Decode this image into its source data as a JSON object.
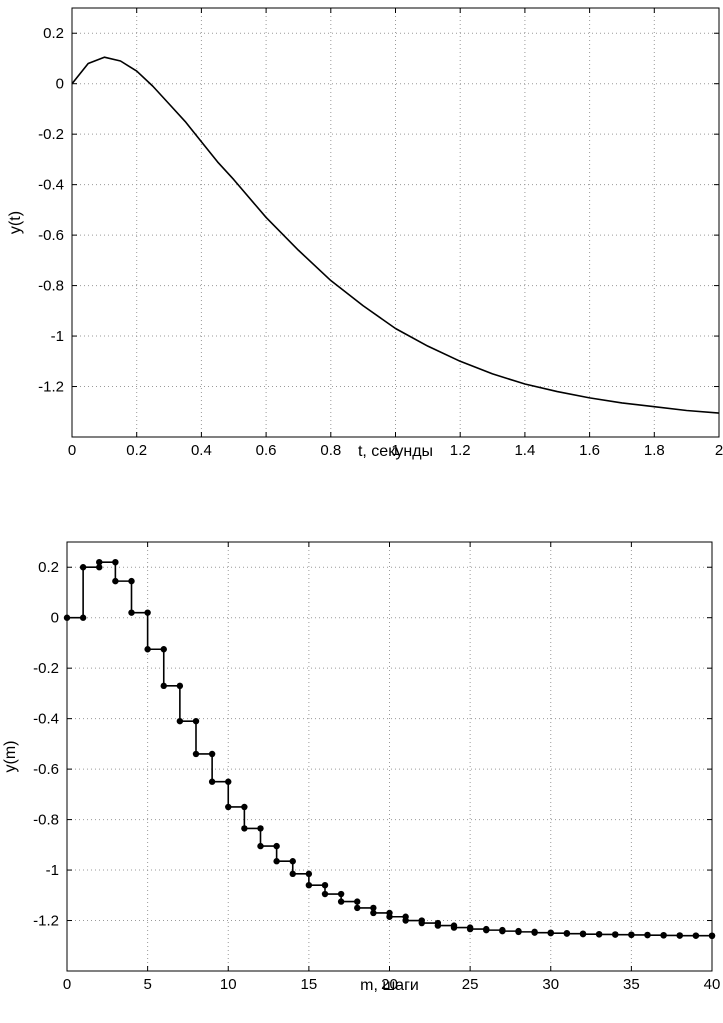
{
  "chart_data": [
    {
      "type": "line",
      "xlabel": "t, секунды",
      "ylabel": "y(t)",
      "xlim": [
        0,
        2
      ],
      "ylim": [
        -1.4,
        0.3
      ],
      "xticks": [
        0,
        0.2,
        0.4,
        0.6,
        0.8,
        1,
        1.2,
        1.4,
        1.6,
        1.8,
        2
      ],
      "xtick_labels": [
        "0",
        "0.2",
        "0.4",
        "0.6",
        "0.8",
        "1",
        "1.2",
        "1.4",
        "1.6",
        "1.8",
        "2"
      ],
      "yticks": [
        -1.2,
        -1,
        -0.8,
        -0.6,
        -0.4,
        -0.2,
        0,
        0.2
      ],
      "ytick_labels": [
        "-1.2",
        "-1",
        "-0.8",
        "-0.6",
        "-0.4",
        "-0.2",
        "0",
        "0.2"
      ],
      "grid": true,
      "line_color": "#000000",
      "series": [
        {
          "x": [
            0,
            0.05,
            0.1,
            0.15,
            0.2,
            0.25,
            0.3,
            0.35,
            0.4,
            0.45,
            0.5,
            0.6,
            0.7,
            0.8,
            0.9,
            1.0,
            1.1,
            1.2,
            1.3,
            1.4,
            1.5,
            1.6,
            1.7,
            1.8,
            1.9,
            2.0
          ],
          "y": [
            0,
            0.08,
            0.105,
            0.09,
            0.05,
            -0.01,
            -0.08,
            -0.15,
            -0.23,
            -0.31,
            -0.38,
            -0.53,
            -0.66,
            -0.78,
            -0.88,
            -0.97,
            -1.04,
            -1.1,
            -1.15,
            -1.19,
            -1.22,
            -1.245,
            -1.265,
            -1.28,
            -1.295,
            -1.305
          ]
        }
      ]
    },
    {
      "type": "line",
      "step": true,
      "markers": true,
      "xlabel": "m, шаги",
      "ylabel": "y(m)",
      "xlim": [
        0,
        40
      ],
      "ylim": [
        -1.4,
        0.3
      ],
      "xticks": [
        0,
        5,
        10,
        15,
        20,
        25,
        30,
        35,
        40
      ],
      "xtick_labels": [
        "0",
        "5",
        "10",
        "15",
        "20",
        "25",
        "30",
        "35",
        "40"
      ],
      "yticks": [
        -1.2,
        -1,
        -0.8,
        -0.6,
        -0.4,
        -0.2,
        0,
        0.2
      ],
      "ytick_labels": [
        "-1.2",
        "-1",
        "-0.8",
        "-0.6",
        "-0.4",
        "-0.2",
        "0",
        "0.2"
      ],
      "grid": true,
      "line_color": "#000000",
      "series": [
        {
          "x": [
            0,
            1,
            2,
            3,
            4,
            5,
            6,
            7,
            8,
            9,
            10,
            11,
            12,
            13,
            14,
            15,
            16,
            17,
            18,
            19,
            20,
            21,
            22,
            23,
            24,
            25,
            26,
            27,
            28,
            29,
            30,
            31,
            32,
            33,
            34,
            35,
            36,
            37,
            38,
            39,
            40
          ],
          "y": [
            0,
            0.2,
            0.22,
            0.145,
            0.02,
            -0.125,
            -0.27,
            -0.41,
            -0.54,
            -0.65,
            -0.75,
            -0.835,
            -0.905,
            -0.965,
            -1.015,
            -1.06,
            -1.095,
            -1.125,
            -1.15,
            -1.17,
            -1.185,
            -1.2,
            -1.21,
            -1.22,
            -1.228,
            -1.234,
            -1.238,
            -1.242,
            -1.245,
            -1.248,
            -1.25,
            -1.252,
            -1.254,
            -1.255,
            -1.256,
            -1.257,
            -1.258,
            -1.259,
            -1.26,
            -1.26,
            -1.261
          ]
        }
      ]
    }
  ]
}
